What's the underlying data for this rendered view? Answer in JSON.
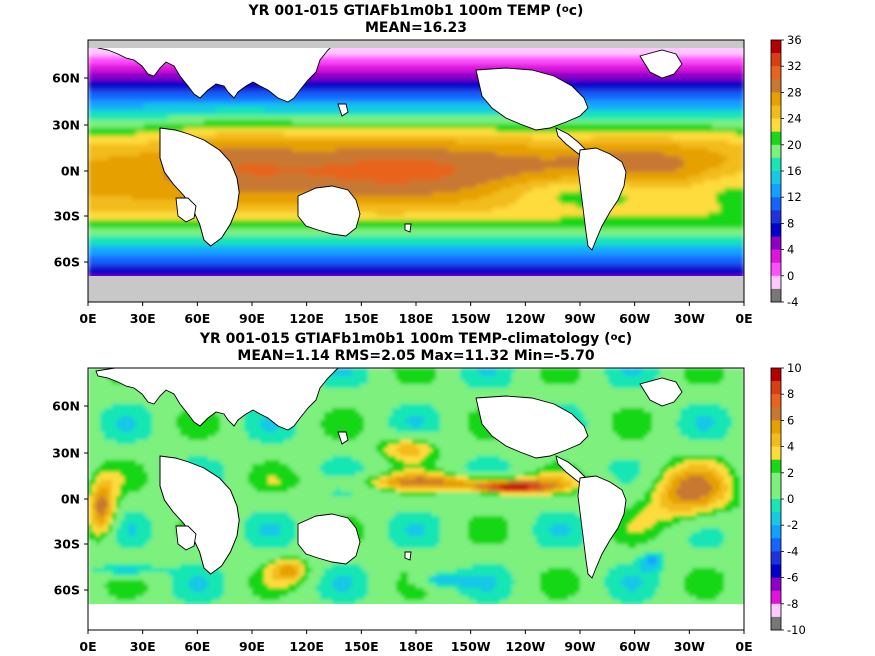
{
  "panels": [
    {
      "title_prefix": "YR 001-015 GTIAFb1m0b1 100m TEMP (",
      "title_unit_sup": "o",
      "title_unit_rest": "c)",
      "subtitle": "MEAN=16.23",
      "colorbar_labels": [
        "36",
        "32",
        "28",
        "24",
        "20",
        "16",
        "12",
        "8",
        "4",
        "0",
        "-4"
      ],
      "colorbar_colors": [
        "#b40000",
        "#d93d14",
        "#e8641e",
        "#c87832",
        "#e6a000",
        "#f2bc1c",
        "#ffdc3c",
        "#19d719",
        "#7df07d",
        "#18e6b4",
        "#19c8e6",
        "#14a0ff",
        "#1464ff",
        "#1e32dc",
        "#0000c8",
        "#8c00c8",
        "#dc14dc",
        "#ff50ff",
        "#ffc8ff",
        "#777777"
      ],
      "field": "temperature"
    },
    {
      "title_prefix": "YR 001-015 GTIAFb1m0b1 100m TEMP-climatology (",
      "title_unit_sup": "o",
      "title_unit_rest": "c)",
      "subtitle": "MEAN=1.14   RMS=2.05   Max=11.32   Min=-5.70",
      "colorbar_labels": [
        "10",
        "8",
        "6",
        "4",
        "2",
        "0",
        "-2",
        "-4",
        "-6",
        "-8",
        "-10"
      ],
      "colorbar_colors": [
        "#b40000",
        "#d93d14",
        "#e8641e",
        "#c87832",
        "#e6a000",
        "#f2bc1c",
        "#ffdc3c",
        "#19d719",
        "#7df07d",
        "#7df07d",
        "#18e6b4",
        "#19c8e6",
        "#14a0ff",
        "#1464ff",
        "#1e32dc",
        "#0000c8",
        "#8c00c8",
        "#dc14dc",
        "#ffc8ff",
        "#777777"
      ],
      "field": "anomaly"
    }
  ],
  "lon_labels": [
    "0E",
    "30E",
    "60E",
    "90E",
    "120E",
    "150E",
    "180E",
    "150W",
    "120W",
    "90W",
    "60W",
    "30W",
    "0E"
  ],
  "lat_labels": [
    "60N",
    "30N",
    "0N",
    "30S",
    "60S"
  ]
}
